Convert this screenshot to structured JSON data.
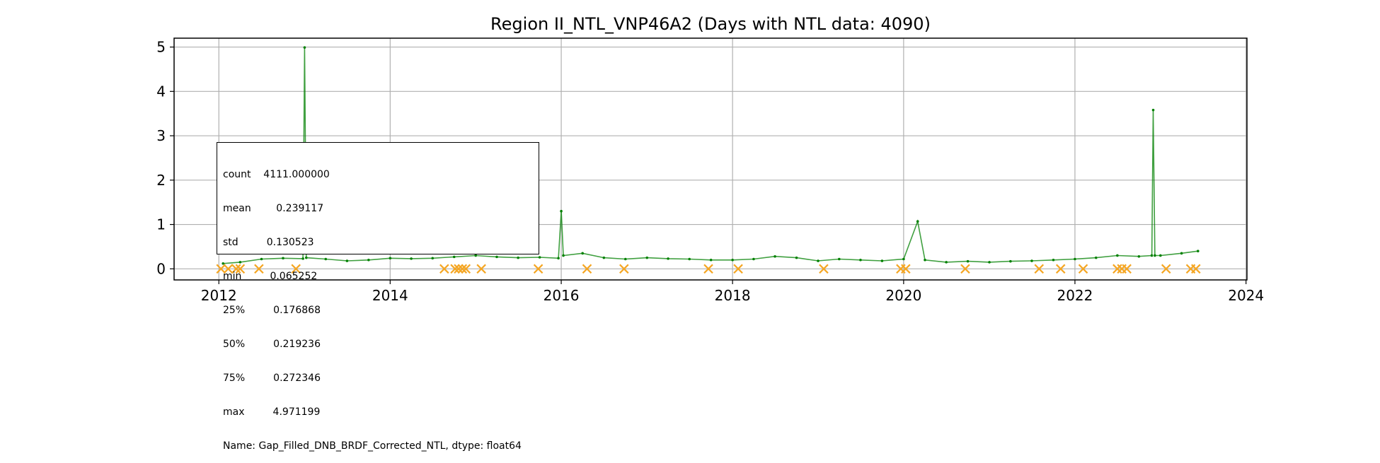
{
  "chart_data": {
    "type": "line",
    "title": "Region II_NTL_VNP46A2 (Days with NTL data: 4090)",
    "xlabel": "",
    "ylabel": "",
    "x_range": [
      "2011-06-24",
      "2024-01-05"
    ],
    "ylim": [
      -0.25,
      5.2
    ],
    "grid": true,
    "x_ticks": [
      "2012",
      "2014",
      "2016",
      "2018",
      "2020",
      "2022",
      "2024"
    ],
    "y_ticks": [
      0,
      1,
      2,
      3,
      4,
      5
    ],
    "colors": {
      "series": "#008000",
      "markers": "#f5a623",
      "grid": "#b0b0b0"
    },
    "series": [
      {
        "style": "green line with point markers",
        "x": [
          "2012-01-19",
          "2012-04-01",
          "2012-07-01",
          "2012-10-01",
          "2012-12-25",
          "2013-01-01",
          "2013-01-08",
          "2013-04-01",
          "2013-07-01",
          "2013-10-01",
          "2014-01-01",
          "2014-04-01",
          "2014-07-01",
          "2014-10-01",
          "2015-01-01",
          "2015-04-01",
          "2015-07-01",
          "2015-10-01",
          "2015-12-20",
          "2016-01-01",
          "2016-01-10",
          "2016-04-01",
          "2016-07-01",
          "2016-10-01",
          "2017-01-01",
          "2017-04-01",
          "2017-07-01",
          "2017-10-01",
          "2018-01-01",
          "2018-04-01",
          "2018-07-01",
          "2018-10-01",
          "2019-01-01",
          "2019-04-01",
          "2019-07-01",
          "2019-10-01",
          "2020-01-01",
          "2020-03-01",
          "2020-04-01",
          "2020-07-01",
          "2020-10-01",
          "2021-01-01",
          "2021-04-01",
          "2021-07-01",
          "2021-10-01",
          "2022-01-01",
          "2022-04-01",
          "2022-07-01",
          "2022-10-01",
          "2022-11-25",
          "2022-12-01",
          "2022-12-08",
          "2023-01-01",
          "2023-04-01",
          "2023-06-10"
        ],
        "y": [
          0.12,
          0.15,
          0.22,
          0.24,
          0.23,
          4.99,
          0.25,
          0.22,
          0.18,
          0.2,
          0.24,
          0.23,
          0.24,
          0.27,
          0.3,
          0.27,
          0.25,
          0.26,
          0.24,
          1.3,
          0.3,
          0.35,
          0.25,
          0.22,
          0.25,
          0.23,
          0.22,
          0.2,
          0.2,
          0.22,
          0.28,
          0.25,
          0.18,
          0.22,
          0.2,
          0.18,
          0.22,
          1.07,
          0.2,
          0.15,
          0.17,
          0.15,
          0.17,
          0.18,
          0.2,
          0.22,
          0.25,
          0.3,
          0.28,
          0.3,
          3.58,
          0.3,
          0.3,
          0.35,
          0.4
        ]
      },
      {
        "style": "orange x markers",
        "x": [
          "2012-01-10",
          "2012-02-10",
          "2012-03-15",
          "2012-04-01",
          "2012-06-20",
          "2012-11-25",
          "2014-08-20",
          "2014-10-05",
          "2014-10-20",
          "2014-11-05",
          "2014-11-20",
          "2015-01-25",
          "2015-09-25",
          "2016-04-20",
          "2016-09-25",
          "2017-09-20",
          "2018-01-25",
          "2019-01-25",
          "2019-12-20",
          "2020-01-10",
          "2020-09-20",
          "2021-08-01",
          "2021-11-01",
          "2022-02-05",
          "2022-07-01",
          "2022-07-20",
          "2022-08-10",
          "2023-01-25",
          "2023-05-10",
          "2023-06-01"
        ],
        "y": [
          0,
          0,
          0,
          0,
          0,
          0,
          0,
          0,
          0,
          0,
          0,
          0,
          0,
          0,
          0,
          0,
          0,
          0,
          0,
          0,
          0,
          0,
          0,
          0,
          0,
          0,
          0,
          0,
          0,
          0
        ]
      }
    ],
    "stats_box": {
      "lines": [
        "count    4111.000000",
        "mean        0.239117",
        "std         0.130523",
        "min         0.065252",
        "25%         0.176868",
        "50%         0.219236",
        "75%         0.272346",
        "max         4.971199",
        "Name: Gap_Filled_DNB_BRDF_Corrected_NTL, dtype: float64"
      ]
    }
  }
}
